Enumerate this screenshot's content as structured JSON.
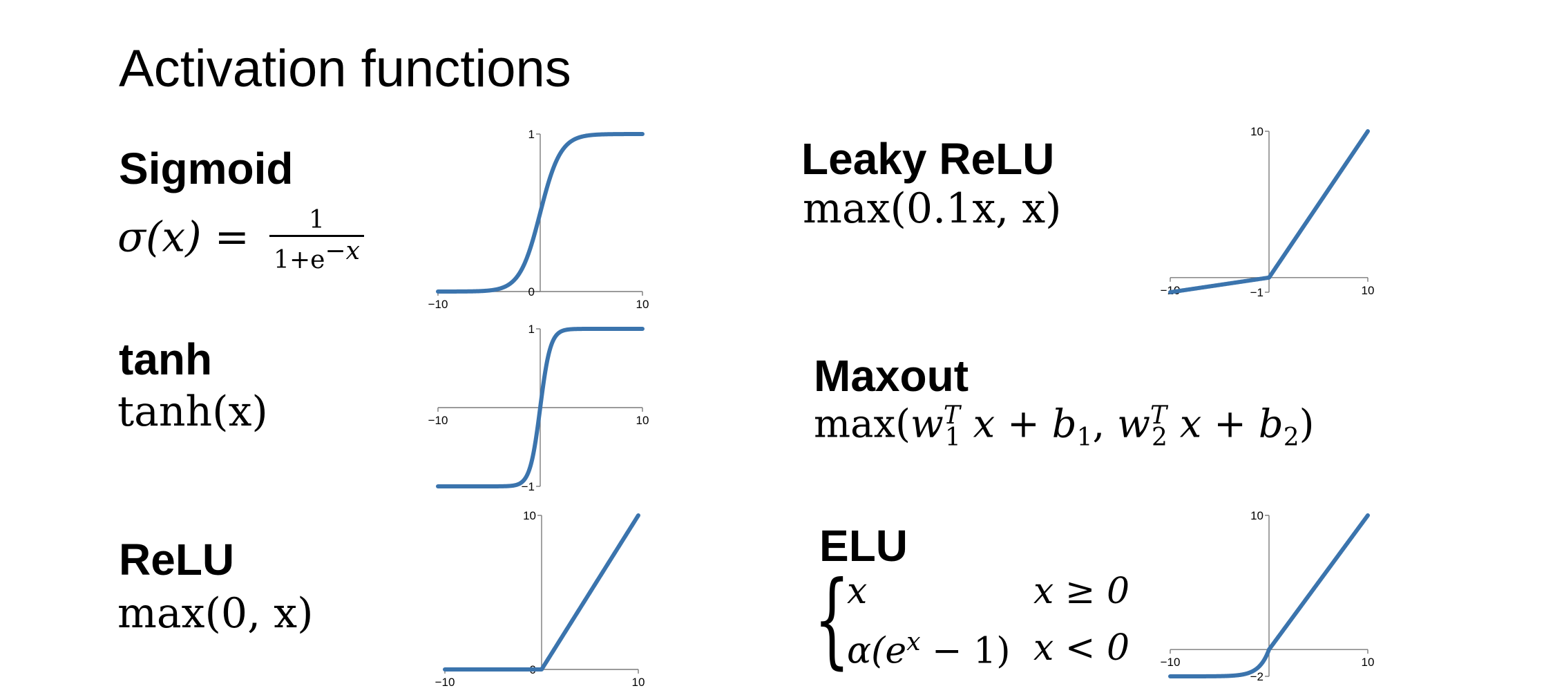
{
  "title": "Activation functions",
  "colors": {
    "curve": "#3b74ad",
    "axis": "#7a7a7a"
  },
  "functions": {
    "sigmoid": {
      "name": "Sigmoid",
      "f_lhs": "σ(x) =",
      "num": "1",
      "den_base": "1+e",
      "den_exp": "−x"
    },
    "tanh": {
      "name": "tanh",
      "formula": "tanh(x)"
    },
    "relu": {
      "name": "ReLU",
      "formula": "max(0, x)"
    },
    "leaky": {
      "name": "Leaky ReLU",
      "formula": "max(0.1x, x)"
    },
    "maxout": {
      "name": "Maxout"
    },
    "elu": {
      "name": "ELU",
      "case1_expr": "x",
      "case1_cond": "x ≥ 0",
      "case2_expr": "α(e",
      "case2_exp": "x",
      "case2_tail": " − 1)",
      "case2_cond": "x < 0"
    }
  },
  "charts": {
    "sigmoid": {
      "function": "sigmoid",
      "xlim": [
        -10,
        10
      ],
      "ylim": [
        0,
        1
      ],
      "ticks": {
        "xmin": "−10",
        "xmax": "10",
        "ytop": "1",
        "yzero": "0"
      }
    },
    "tanh": {
      "function": "tanh",
      "xlim": [
        -10,
        10
      ],
      "ylim": [
        -1,
        1
      ],
      "ticks": {
        "xmin": "−10",
        "xmax": "10",
        "ytop": "1",
        "ybot": "−1"
      }
    },
    "relu": {
      "function": "relu",
      "xlim": [
        -10,
        10
      ],
      "ylim": [
        0,
        10
      ],
      "ticks": {
        "xmin": "−10",
        "xmax": "10",
        "ytop": "10",
        "yzero": "0"
      }
    },
    "leaky": {
      "function": "leaky_relu",
      "alpha": 0.1,
      "xlim": [
        -10,
        10
      ],
      "ylim": [
        -1,
        10
      ],
      "ticks": {
        "xmin": "−10",
        "xmax": "10",
        "ytop": "10",
        "ybot": "−1"
      }
    },
    "elu": {
      "function": "elu",
      "alpha": 2,
      "xlim": [
        -10,
        10
      ],
      "ylim": [
        -2,
        10
      ],
      "ticks": {
        "xmin": "−10",
        "xmax": "10",
        "ytop": "10",
        "ybot": "−2"
      }
    }
  }
}
